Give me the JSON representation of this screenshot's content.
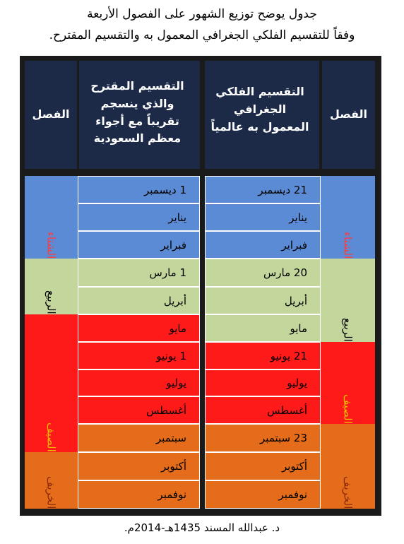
{
  "title": {
    "line1": "جدول يوضح توزيع الشهور على الفصول الأربعة",
    "line2": "وفقاً للتقسيم الفلكي الجغرافي المعمول به والتقسيم المقترح."
  },
  "headers": {
    "season_right": "الفصل",
    "astro": "التقسيم الفلكي الجغرافي المعمول به عالمياً",
    "proposed": "التقسيم المقترح والذي ينسجم تقريباً مع أجواء معظم السعودية",
    "season_left": "الفصل"
  },
  "colors": {
    "header": "#1c2a48",
    "winter": "#5b8bd4",
    "spring": "#c3d69b",
    "summer": "#ff1a1a",
    "autumn": "#e46c1a"
  },
  "astronomical": {
    "seasons": [
      {
        "name": "الشتاء",
        "color": "#5b8bd4",
        "text_color": "#ff3b3b",
        "months": [
          "21 ديسمبر",
          "يناير",
          "فبراير"
        ]
      },
      {
        "name": "الربيع",
        "color": "#c3d69b",
        "text_color": "#000000",
        "months": [
          "20 مارس",
          "أبريل",
          "مايو"
        ]
      },
      {
        "name": "الصيف",
        "color": "#ff1a1a",
        "text_color": "#e8c000",
        "months": [
          "21 يونيو",
          "يوليو",
          "أغسطس"
        ]
      },
      {
        "name": "الخريف",
        "color": "#e46c1a",
        "text_color": "#8b2a0a",
        "months": [
          "23 سبتمبر",
          "أكتوبر",
          "نوفمبر"
        ]
      }
    ]
  },
  "proposed": {
    "seasons": [
      {
        "name": "الشتاء",
        "color": "#5b8bd4",
        "text_color": "#ff3b3b",
        "months": [
          "1 ديسمبر",
          "يناير",
          "فبراير"
        ]
      },
      {
        "name": "الربيع",
        "color": "#c3d69b",
        "text_color": "#000000",
        "months": [
          "1 مارس",
          "أبريل"
        ]
      },
      {
        "name": "الصيف",
        "color": "#ff1a1a",
        "text_color": "#e8c000",
        "months": [
          "مايو",
          "1 يونيو",
          "يوليو",
          "أغسطس",
          "سبتمبر"
        ]
      },
      {
        "name": "الخريف",
        "color": "#e46c1a",
        "text_color": "#8b2a0a",
        "months": [
          "أكتوبر",
          "نوفمبر"
        ]
      }
    ]
  },
  "footer": "د. عبدالله المسند 1435هـ-2014م."
}
